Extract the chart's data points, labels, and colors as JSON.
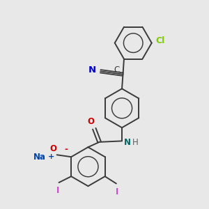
{
  "background_color": "#e8e8e8",
  "bond_color": "#3a3a3a",
  "bond_width": 1.4,
  "atom_colors": {
    "N": "#006666",
    "O": "#cc0000",
    "C_cyano": "#0000cc",
    "Cl": "#7bcd00",
    "I": "#cc44cc",
    "Na": "#0044aa",
    "H": "#606060"
  },
  "font_size": 8.5
}
